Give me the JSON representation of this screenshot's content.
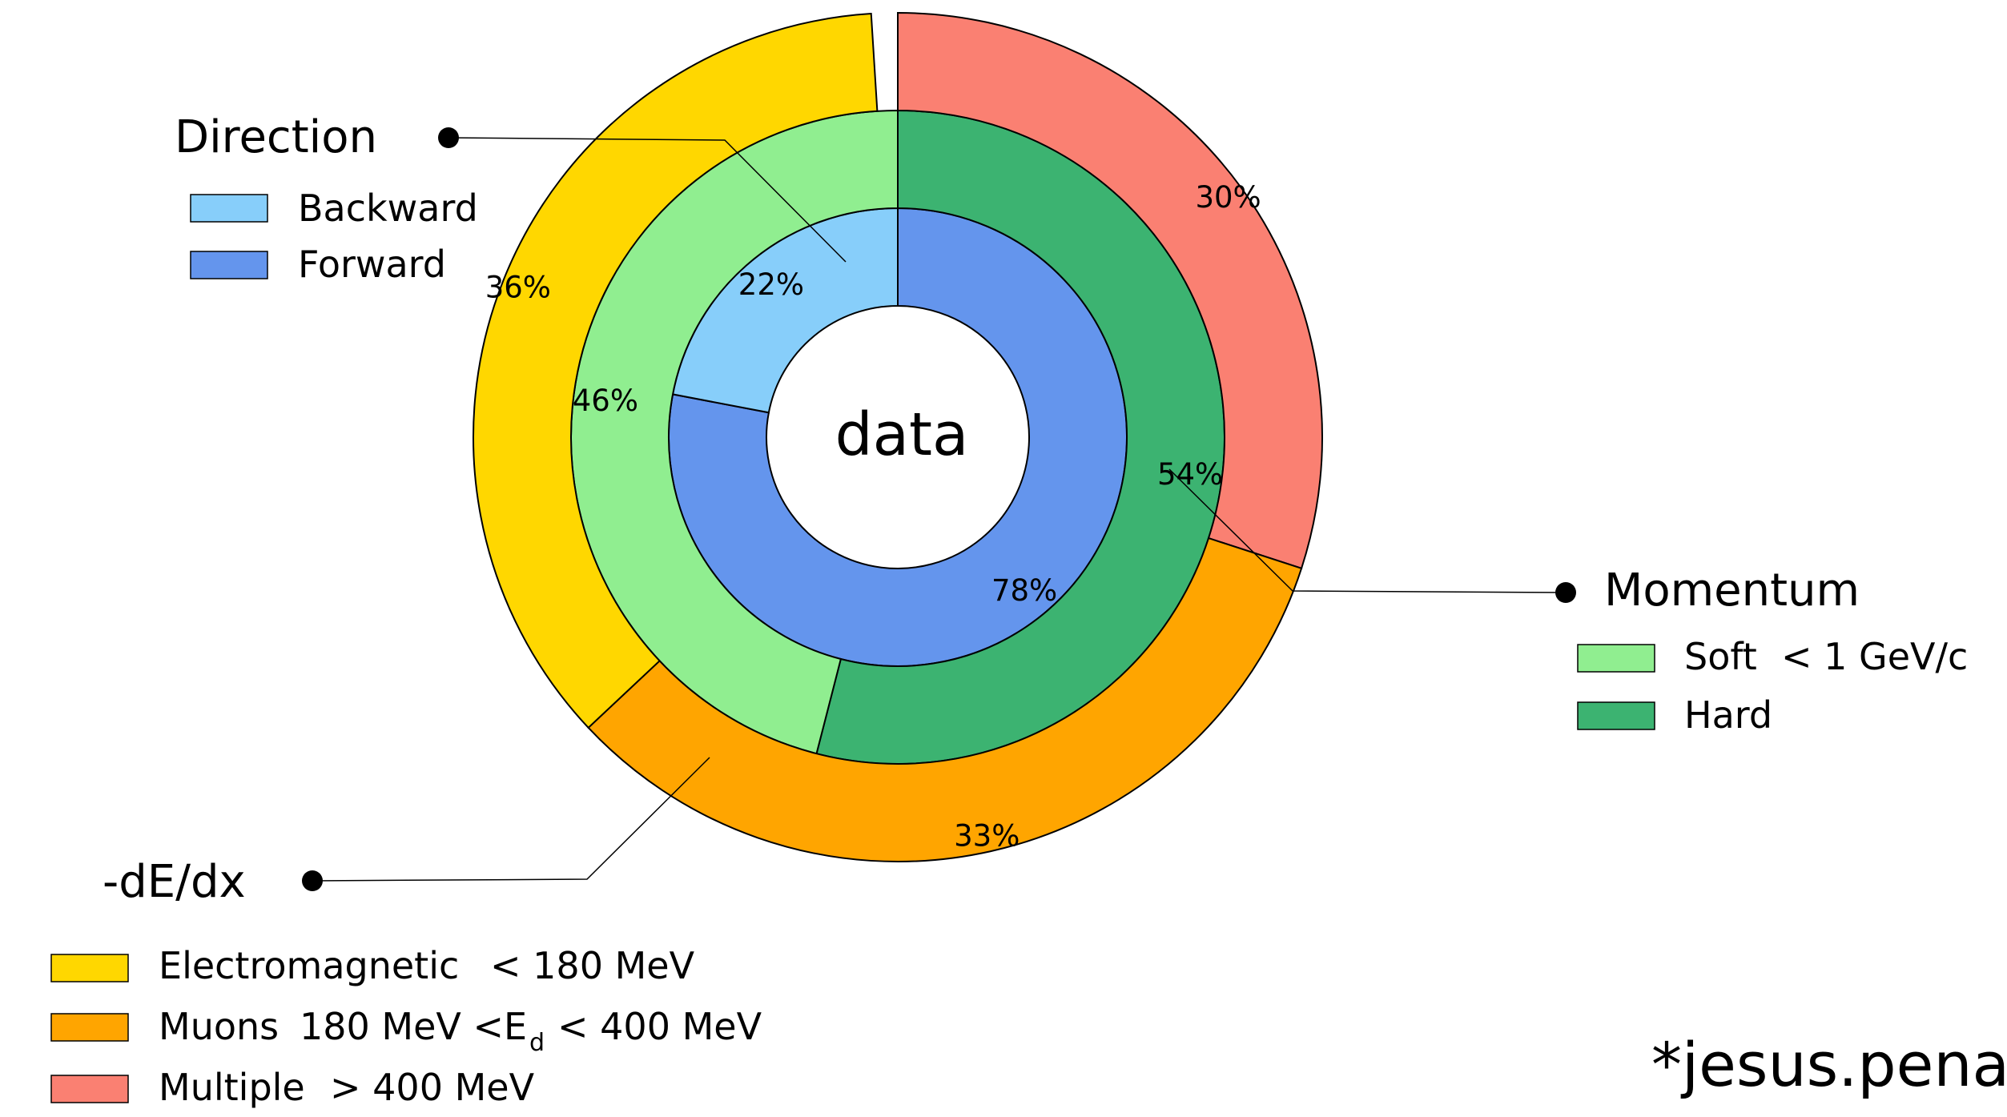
{
  "chart_data": {
    "type": "pie",
    "center_label": "data",
    "rings": [
      {
        "name": "Direction",
        "segments": [
          {
            "label": "Forward",
            "value": 78,
            "value_label": "78%",
            "color": "#6495ED"
          },
          {
            "label": "Backward",
            "value": 22,
            "value_label": "22%",
            "color": "#87CEFA"
          }
        ]
      },
      {
        "name": "Momentum",
        "segments": [
          {
            "label": "Hard",
            "value": 54,
            "value_label": "54%",
            "color": "#3CB371"
          },
          {
            "label": "Soft",
            "value": 46,
            "value_label": "46%",
            "color": "#90EE90"
          }
        ]
      },
      {
        "name": "-dE/dx",
        "segments": [
          {
            "label": "Multiple",
            "value": 30,
            "value_label": "30%",
            "color": "#FA8072"
          },
          {
            "label": "Muons",
            "value": 33,
            "value_label": "33%",
            "color": "#FFA500"
          },
          {
            "label": "Electromagnetic",
            "value": 36,
            "value_label": "36%",
            "color": "#FFD700"
          }
        ]
      }
    ],
    "legends": {
      "direction": {
        "title": "Direction",
        "items": [
          {
            "label": "Backward",
            "color": "#87CEFA"
          },
          {
            "label": "Forward",
            "color": "#6495ED"
          }
        ]
      },
      "momentum": {
        "title": "Momentum",
        "items": [
          {
            "label": "Soft",
            "note": "< 1 GeV/c",
            "color": "#90EE90"
          },
          {
            "label": "Hard",
            "note": "",
            "color": "#3CB371"
          }
        ]
      },
      "dedx": {
        "title": "-dE/dx",
        "items": [
          {
            "label": "Electromagnetic",
            "note_pre": "< 180 MeV",
            "note_sub": "",
            "note_post": "",
            "color": "#FFD700"
          },
          {
            "label": "Muons",
            "note_pre": "180 MeV <E",
            "note_sub": "d",
            "note_post": "< 400 MeV",
            "color": "#FFA500"
          },
          {
            "label": "Multiple",
            "note_pre": "> 400 MeV",
            "note_sub": "",
            "note_post": "",
            "color": "#FA8072"
          }
        ]
      }
    },
    "credit": "*jesus.pena"
  }
}
